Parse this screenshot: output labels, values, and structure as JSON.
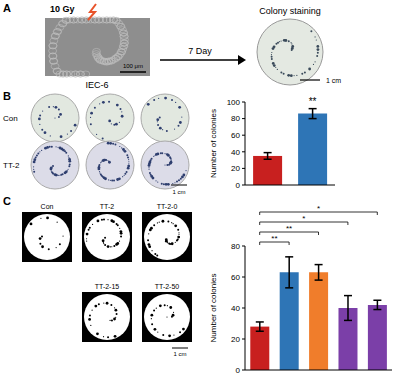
{
  "figure": {
    "panel_labels": [
      "A",
      "B",
      "C"
    ],
    "panel_a": {
      "dose": "10 Gy",
      "time": "7 Day",
      "cell_line": "IEC-6",
      "stain": "Colony staining",
      "scale_cells": "100 μm",
      "scale_dish": "1 cm"
    },
    "panel_b": {
      "rows": [
        "Con",
        "TT-2"
      ],
      "scale": "1 cm"
    },
    "panel_c": {
      "groups": [
        "Con",
        "TT-2",
        "TT-2-0",
        "TT-2-15",
        "TT-2-50"
      ],
      "scale": "1 cm"
    }
  },
  "chart_data": [
    {
      "type": "bar",
      "categories": [
        "Con",
        "TT-2"
      ],
      "values": [
        35,
        86
      ],
      "errors": [
        4,
        6
      ],
      "colors": [
        "#c8201f",
        "#2e75b6"
      ],
      "ylim": [
        0,
        100
      ],
      "yticks": [
        0,
        20,
        40,
        60,
        80,
        100
      ],
      "y_label": "Number of colonies",
      "tick_labels": "y",
      "annotations": [
        {
          "category": "TT-2",
          "label": "**"
        }
      ]
    },
    {
      "type": "bar",
      "categories": [
        "Con",
        "TT-2",
        "TT-2-0",
        "TT-2-15",
        "TT-2-50"
      ],
      "values": [
        28,
        63,
        63,
        40,
        42
      ],
      "errors": [
        3,
        10,
        5,
        8,
        3
      ],
      "colors": [
        "#c8201f",
        "#2e75b6",
        "#f07d2b",
        "#7b3fa8",
        "#7b3fa8"
      ],
      "ylim": [
        0,
        80
      ],
      "yticks": [
        0,
        20,
        40,
        60,
        80
      ],
      "y_label": "Number of colonies",
      "tick_labels": "y",
      "comparisons": [
        {
          "from": "Con",
          "to": "TT-2",
          "label": "**"
        },
        {
          "from": "Con",
          "to": "TT-2-0",
          "label": "**"
        },
        {
          "from": "Con",
          "to": "TT-2-15",
          "label": "*"
        },
        {
          "from": "Con",
          "to": "TT-2-50",
          "label": "*"
        }
      ]
    }
  ]
}
